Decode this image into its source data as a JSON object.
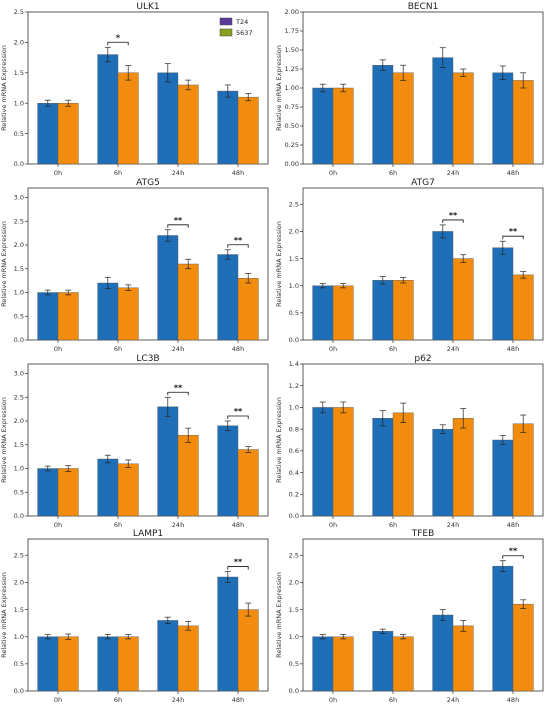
{
  "colors": {
    "t24": "#1f6fb8",
    "s5637": "#f28c0f",
    "axis": "#333333"
  },
  "legend": [
    {
      "label": "T24",
      "color": "#5c3b9c"
    },
    {
      "label": "5637",
      "color": "#8aa01e"
    }
  ],
  "chart_data": [
    {
      "type": "bar",
      "title": "ULK1",
      "ylabel": "Relative mRNA Expression",
      "categories": [
        "0h",
        "6h",
        "24h",
        "48h"
      ],
      "ylim": [
        0,
        2.5
      ],
      "yticks": [
        "0.0",
        "0.5",
        "1.0",
        "1.5",
        "2.0",
        "2.5"
      ],
      "series": [
        {
          "name": "T24",
          "values": [
            1.0,
            1.8,
            1.5,
            1.2
          ],
          "errors": [
            0.05,
            0.12,
            0.15,
            0.1
          ]
        },
        {
          "name": "5637",
          "values": [
            1.0,
            1.5,
            1.3,
            1.1
          ],
          "errors": [
            0.05,
            0.12,
            0.08,
            0.06
          ]
        }
      ],
      "significance": [
        {
          "category": "6h",
          "label": "*"
        }
      ]
    },
    {
      "type": "bar",
      "title": "BECN1",
      "ylabel": "Relative mRNA Expression",
      "categories": [
        "0h",
        "6h",
        "24h",
        "48h"
      ],
      "ylim": [
        0,
        2.0
      ],
      "yticks": [
        "0.00",
        "0.25",
        "0.50",
        "0.75",
        "1.00",
        "1.25",
        "1.50",
        "1.75",
        "2.00"
      ],
      "series": [
        {
          "name": "T24",
          "values": [
            1.0,
            1.3,
            1.4,
            1.2
          ],
          "errors": [
            0.05,
            0.07,
            0.13,
            0.09
          ]
        },
        {
          "name": "5637",
          "values": [
            1.0,
            1.2,
            1.2,
            1.1
          ],
          "errors": [
            0.05,
            0.1,
            0.05,
            0.1
          ]
        }
      ],
      "significance": []
    },
    {
      "type": "bar",
      "title": "ATG5",
      "ylabel": "Relative mRNA Expression",
      "categories": [
        "0h",
        "6h",
        "24h",
        "48h"
      ],
      "ylim": [
        0,
        3.2
      ],
      "yticks": [
        "0.0",
        "0.5",
        "1.0",
        "1.5",
        "2.0",
        "2.5",
        "3.0"
      ],
      "series": [
        {
          "name": "T24",
          "values": [
            1.0,
            1.2,
            2.2,
            1.8
          ],
          "errors": [
            0.05,
            0.12,
            0.12,
            0.1
          ]
        },
        {
          "name": "5637",
          "values": [
            1.0,
            1.1,
            1.6,
            1.3
          ],
          "errors": [
            0.05,
            0.06,
            0.1,
            0.1
          ]
        }
      ],
      "significance": [
        {
          "category": "24h",
          "label": "**"
        },
        {
          "category": "48h",
          "label": "**"
        }
      ]
    },
    {
      "type": "bar",
      "title": "ATG7",
      "ylabel": "Relative mRNA Expression",
      "categories": [
        "0h",
        "6h",
        "24h",
        "48h"
      ],
      "ylim": [
        0,
        2.8
      ],
      "yticks": [
        "0.0",
        "0.5",
        "1.0",
        "1.5",
        "2.0",
        "2.5"
      ],
      "series": [
        {
          "name": "T24",
          "values": [
            1.0,
            1.1,
            2.0,
            1.7
          ],
          "errors": [
            0.04,
            0.07,
            0.12,
            0.12
          ]
        },
        {
          "name": "5637",
          "values": [
            1.0,
            1.1,
            1.5,
            1.2
          ],
          "errors": [
            0.04,
            0.05,
            0.07,
            0.06
          ]
        }
      ],
      "significance": [
        {
          "category": "24h",
          "label": "**"
        },
        {
          "category": "48h",
          "label": "**"
        }
      ]
    },
    {
      "type": "bar",
      "title": "LC3B",
      "ylabel": "Relative mRNA Expression",
      "categories": [
        "0h",
        "6h",
        "24h",
        "48h"
      ],
      "ylim": [
        0,
        3.2
      ],
      "yticks": [
        "0.0",
        "0.5",
        "1.0",
        "1.5",
        "2.0",
        "2.5",
        "3.0"
      ],
      "series": [
        {
          "name": "T24",
          "values": [
            1.0,
            1.2,
            2.3,
            1.9
          ],
          "errors": [
            0.05,
            0.08,
            0.2,
            0.1
          ]
        },
        {
          "name": "5637",
          "values": [
            1.0,
            1.1,
            1.7,
            1.4
          ],
          "errors": [
            0.06,
            0.08,
            0.15,
            0.06
          ]
        }
      ],
      "significance": [
        {
          "category": "24h",
          "label": "**"
        },
        {
          "category": "48h",
          "label": "**"
        }
      ]
    },
    {
      "type": "bar",
      "title": "p62",
      "ylabel": "Relative mRNA Expression",
      "categories": [
        "0h",
        "6h",
        "24h",
        "48h"
      ],
      "ylim": [
        0,
        1.4
      ],
      "yticks": [
        "0.0",
        "0.2",
        "0.4",
        "0.6",
        "0.8",
        "1.0",
        "1.2",
        "1.4"
      ],
      "series": [
        {
          "name": "T24",
          "values": [
            1.0,
            0.9,
            0.8,
            0.7
          ],
          "errors": [
            0.05,
            0.07,
            0.04,
            0.04
          ]
        },
        {
          "name": "5637",
          "values": [
            1.0,
            0.95,
            0.9,
            0.85
          ],
          "errors": [
            0.05,
            0.09,
            0.09,
            0.08
          ]
        }
      ],
      "significance": []
    },
    {
      "type": "bar",
      "title": "LAMP1",
      "ylabel": "Relative mRNA Expression",
      "categories": [
        "0h",
        "6h",
        "24h",
        "48h"
      ],
      "ylim": [
        0,
        2.8
      ],
      "yticks": [
        "0.0",
        "0.5",
        "1.0",
        "1.5",
        "2.0",
        "2.5"
      ],
      "series": [
        {
          "name": "T24",
          "values": [
            1.0,
            1.0,
            1.3,
            2.1
          ],
          "errors": [
            0.04,
            0.04,
            0.06,
            0.1
          ]
        },
        {
          "name": "5637",
          "values": [
            1.0,
            1.0,
            1.2,
            1.5
          ],
          "errors": [
            0.05,
            0.04,
            0.08,
            0.12
          ]
        }
      ],
      "significance": [
        {
          "category": "48h",
          "label": "**"
        }
      ]
    },
    {
      "type": "bar",
      "title": "TFEB",
      "ylabel": "Relative mRNA Expression",
      "categories": [
        "0h",
        "6h",
        "24h",
        "48h"
      ],
      "ylim": [
        0,
        2.8
      ],
      "yticks": [
        "0.0",
        "0.5",
        "1.0",
        "1.5",
        "2.0",
        "2.5"
      ],
      "series": [
        {
          "name": "T24",
          "values": [
            1.0,
            1.1,
            1.4,
            2.3
          ],
          "errors": [
            0.04,
            0.04,
            0.1,
            0.1
          ]
        },
        {
          "name": "5637",
          "values": [
            1.0,
            1.0,
            1.2,
            1.6
          ],
          "errors": [
            0.04,
            0.04,
            0.1,
            0.08
          ]
        }
      ],
      "significance": [
        {
          "category": "48h",
          "label": "**"
        }
      ]
    }
  ]
}
